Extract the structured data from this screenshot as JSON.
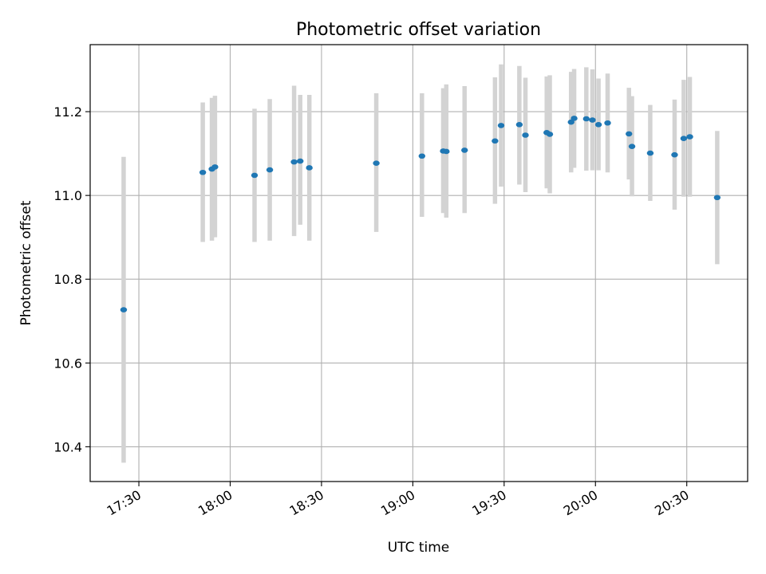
{
  "chart_data": {
    "type": "scatter",
    "title": "Photometric offset variation",
    "xlabel": "UTC time",
    "ylabel": "Photometric offset",
    "xlim": [
      "17:14",
      "20:50"
    ],
    "ylim": [
      10.317,
      11.36
    ],
    "grid": true,
    "xticks": [
      "17:30",
      "18:00",
      "18:30",
      "19:00",
      "19:30",
      "20:00",
      "20:30"
    ],
    "yticks": [
      10.4,
      10.6,
      10.8,
      11.0,
      11.2
    ],
    "ytick_labels": [
      "10.4",
      "10.6",
      "10.8",
      "11.0",
      "11.2"
    ],
    "colors": {
      "point": "#1f77b4",
      "errorbar": "#d3d3d3",
      "grid": "#b0b0b0"
    },
    "points": [
      {
        "t": "17:25",
        "y": 10.727,
        "lo": 10.362,
        "hi": 11.092
      },
      {
        "t": "17:51",
        "y": 11.055,
        "lo": 10.889,
        "hi": 11.222
      },
      {
        "t": "17:54",
        "y": 11.063,
        "lo": 10.892,
        "hi": 11.233
      },
      {
        "t": "17:55",
        "y": 11.068,
        "lo": 10.9,
        "hi": 11.238
      },
      {
        "t": "18:08",
        "y": 11.048,
        "lo": 10.889,
        "hi": 11.207
      },
      {
        "t": "18:13",
        "y": 11.061,
        "lo": 10.892,
        "hi": 11.23
      },
      {
        "t": "18:21",
        "y": 11.08,
        "lo": 10.903,
        "hi": 11.262
      },
      {
        "t": "18:23",
        "y": 11.082,
        "lo": 10.93,
        "hi": 11.24
      },
      {
        "t": "18:26",
        "y": 11.066,
        "lo": 10.892,
        "hi": 11.24
      },
      {
        "t": "18:48",
        "y": 11.077,
        "lo": 10.913,
        "hi": 11.244
      },
      {
        "t": "19:03",
        "y": 11.094,
        "lo": 10.949,
        "hi": 11.244
      },
      {
        "t": "19:10",
        "y": 11.106,
        "lo": 10.958,
        "hi": 11.256
      },
      {
        "t": "19:11",
        "y": 11.105,
        "lo": 10.947,
        "hi": 11.265
      },
      {
        "t": "19:17",
        "y": 11.108,
        "lo": 10.958,
        "hi": 11.261
      },
      {
        "t": "19:27",
        "y": 11.13,
        "lo": 10.98,
        "hi": 11.282
      },
      {
        "t": "19:29",
        "y": 11.167,
        "lo": 11.021,
        "hi": 11.313
      },
      {
        "t": "19:35",
        "y": 11.169,
        "lo": 11.026,
        "hi": 11.309
      },
      {
        "t": "19:37",
        "y": 11.144,
        "lo": 11.008,
        "hi": 11.281
      },
      {
        "t": "19:44",
        "y": 11.15,
        "lo": 11.017,
        "hi": 11.284
      },
      {
        "t": "19:45",
        "y": 11.146,
        "lo": 11.005,
        "hi": 11.287
      },
      {
        "t": "19:52",
        "y": 11.175,
        "lo": 11.055,
        "hi": 11.295
      },
      {
        "t": "19:53",
        "y": 11.184,
        "lo": 11.066,
        "hi": 11.302
      },
      {
        "t": "19:57",
        "y": 11.183,
        "lo": 11.059,
        "hi": 11.306
      },
      {
        "t": "19:59",
        "y": 11.18,
        "lo": 11.06,
        "hi": 11.301
      },
      {
        "t": "20:01",
        "y": 11.169,
        "lo": 11.06,
        "hi": 11.279
      },
      {
        "t": "20:04",
        "y": 11.173,
        "lo": 11.055,
        "hi": 11.291
      },
      {
        "t": "20:11",
        "y": 11.147,
        "lo": 11.038,
        "hi": 11.257
      },
      {
        "t": "20:12",
        "y": 11.117,
        "lo": 10.998,
        "hi": 11.237
      },
      {
        "t": "20:18",
        "y": 11.101,
        "lo": 10.987,
        "hi": 11.216
      },
      {
        "t": "20:26",
        "y": 11.097,
        "lo": 10.966,
        "hi": 11.229
      },
      {
        "t": "20:29",
        "y": 11.136,
        "lo": 10.997,
        "hi": 11.276
      },
      {
        "t": "20:31",
        "y": 11.14,
        "lo": 10.997,
        "hi": 11.283
      },
      {
        "t": "20:40",
        "y": 10.995,
        "lo": 10.836,
        "hi": 11.154
      }
    ]
  }
}
